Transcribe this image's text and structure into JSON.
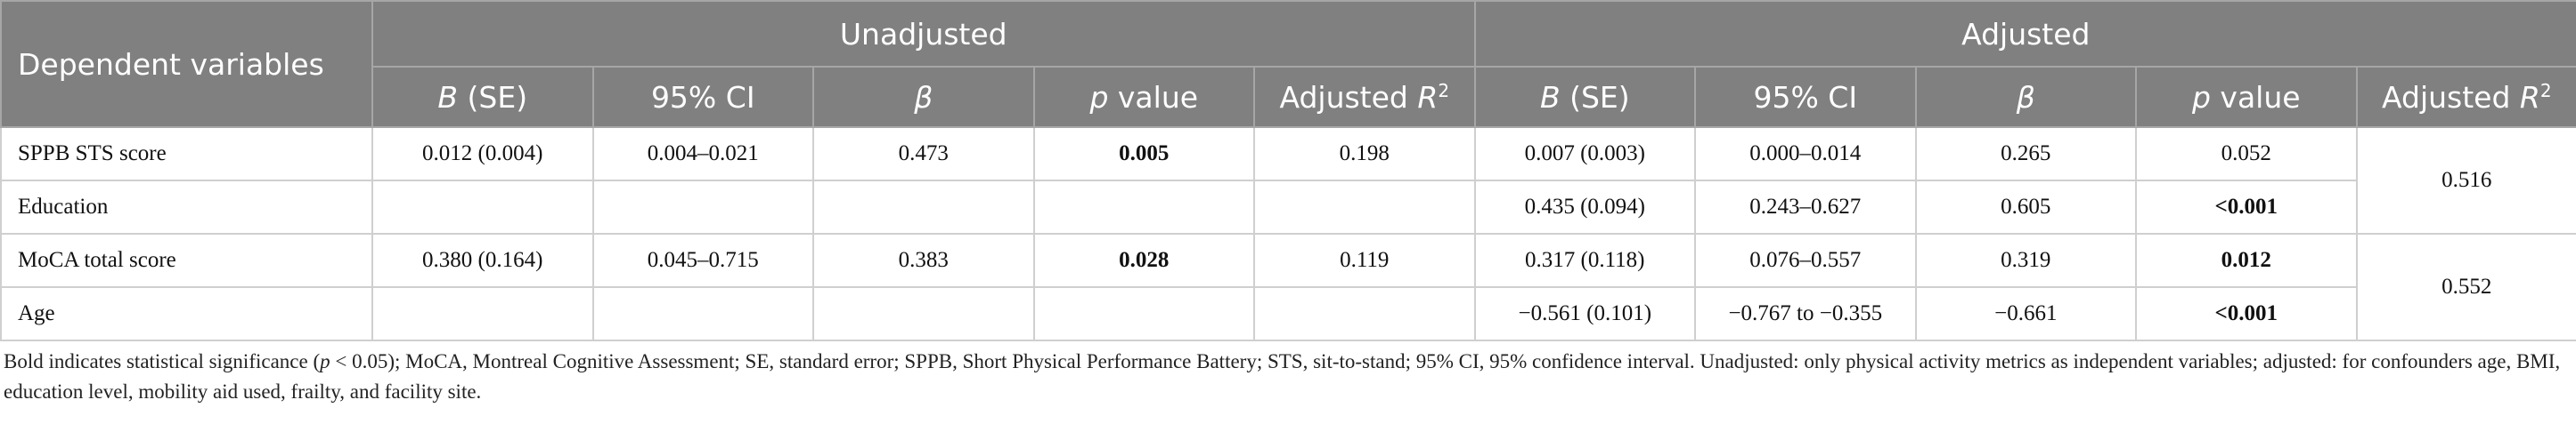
{
  "header": {
    "stub": "Dependent variables",
    "groups": [
      "Unadjusted",
      "Adjusted"
    ],
    "subheaders": [
      [
        {
          "text": "B",
          "italic": true
        },
        {
          "text": " (SE)"
        }
      ],
      [
        {
          "text": "95% CI"
        }
      ],
      [
        {
          "text": "β",
          "italic": true
        }
      ],
      [
        {
          "text": "p",
          "italic": true
        },
        {
          "text": " value"
        }
      ],
      [
        {
          "text": "Adjusted "
        },
        {
          "text": "R",
          "italic": true
        },
        {
          "text": "2",
          "sup": true
        }
      ],
      [
        {
          "text": "B",
          "italic": true
        },
        {
          "text": " (SE)"
        }
      ],
      [
        {
          "text": "95% CI"
        }
      ],
      [
        {
          "text": "β",
          "italic": true
        }
      ],
      [
        {
          "text": "p",
          "italic": true
        },
        {
          "text": " value"
        }
      ],
      [
        {
          "text": "Adjusted "
        },
        {
          "text": "R",
          "italic": true
        },
        {
          "text": "2",
          "sup": true
        }
      ]
    ]
  },
  "table": {
    "rows": [
      {
        "label": "SPPB STS score",
        "cells": [
          {
            "text": "0.012 (0.004)"
          },
          {
            "text": "0.004–0.021"
          },
          {
            "text": "0.473"
          },
          {
            "text": "0.005",
            "bold": true
          },
          {
            "text": "0.198"
          },
          {
            "text": "0.007 (0.003)"
          },
          {
            "text": "0.000–0.014"
          },
          {
            "text": "0.265"
          },
          {
            "text": "0.052"
          },
          {
            "text": "0.516"
          }
        ]
      },
      {
        "label": "Education",
        "cells": [
          null,
          null,
          null,
          null,
          null,
          {
            "text": "0.435 (0.094)"
          },
          {
            "text": "0.243–0.627"
          },
          {
            "text": "0.605"
          },
          {
            "text": "<0.001",
            "bold": true
          }
        ]
      },
      {
        "label": "MoCA total score",
        "cells": [
          {
            "text": "0.380 (0.164)"
          },
          {
            "text": "0.045–0.715"
          },
          {
            "text": "0.383"
          },
          {
            "text": "0.028",
            "bold": true
          },
          {
            "text": "0.119"
          },
          {
            "text": "0.317 (0.118)"
          },
          {
            "text": "0.076–0.557"
          },
          {
            "text": "0.319"
          },
          {
            "text": "0.012",
            "bold": true
          },
          {
            "text": "0.552"
          }
        ]
      },
      {
        "label": "Age",
        "cells": [
          null,
          null,
          null,
          null,
          null,
          {
            "text": "−0.561 (0.101)"
          },
          {
            "text": "−0.767 to −0.355"
          },
          {
            "text": "−0.661"
          },
          {
            "text": "<0.001",
            "bold": true
          }
        ]
      }
    ]
  },
  "footnote": [
    {
      "text": "Bold indicates statistical significance ("
    },
    {
      "text": "p",
      "italic": true
    },
    {
      "text": " < 0.05); MoCA, Montreal Cognitive Assessment; SE, standard error; SPPB, Short Physical Performance Battery; STS, sit-to-stand; 95% CI, 95% confidence interval. Unadjusted: only physical activity metrics as independent variables; adjusted: for confounders age, BMI, education level, mobility aid used, frailty, and facility site."
    }
  ]
}
